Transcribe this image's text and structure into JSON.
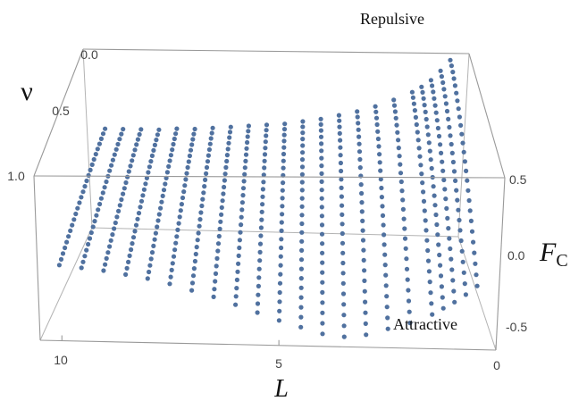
{
  "chart_data": {
    "type": "scatter",
    "title": "",
    "annotations": [
      "Repulsive",
      "Attractive"
    ],
    "axes": {
      "x": {
        "label": "L",
        "ticks": [
          "10",
          "5",
          "0"
        ],
        "range": [
          0,
          10.5
        ]
      },
      "y": {
        "label": "ν",
        "ticks": [
          "0.0",
          "0.5",
          "1.0"
        ],
        "range": [
          0,
          1
        ]
      },
      "z": {
        "label": "F",
        "label_subscript": "C",
        "ticks": [
          "0.5",
          "0.0",
          "-0.5"
        ],
        "range": [
          -0.7,
          0.65
        ]
      }
    },
    "marker_color": "#50719f",
    "surface": {
      "L_values": [
        0.5,
        0.75,
        1.0,
        1.25,
        1.5,
        2.0,
        2.5,
        3.0,
        3.5,
        4.0,
        4.5,
        5.0,
        5.5,
        6.0,
        6.5,
        7.0,
        7.5,
        8.0,
        8.5,
        9.0,
        9.5,
        10.0
      ],
      "nu_values": [
        0.0,
        0.04,
        0.08,
        0.12,
        0.16,
        0.2,
        0.24,
        0.28,
        0.32,
        0.36,
        0.4,
        0.44,
        0.48,
        0.52,
        0.56,
        0.6,
        0.64,
        0.68,
        0.72,
        0.76,
        0.8,
        0.84,
        0.88,
        0.92,
        0.96,
        1.0
      ],
      "F_edge_nu0": [
        0.6,
        0.52,
        0.45,
        0.4,
        0.36,
        0.3,
        0.25,
        0.21,
        0.18,
        0.15,
        0.13,
        0.11,
        0.1,
        0.09,
        0.08,
        0.07,
        0.06,
        0.06,
        0.05,
        0.05,
        0.05,
        0.05
      ],
      "F_edge_nu1": [
        -0.2,
        -0.27,
        -0.33,
        -0.38,
        -0.43,
        -0.5,
        -0.55,
        -0.6,
        -0.62,
        -0.6,
        -0.55,
        -0.5,
        -0.44,
        -0.38,
        -0.32,
        -0.27,
        -0.22,
        -0.18,
        -0.15,
        -0.12,
        -0.1,
        -0.08
      ]
    }
  }
}
